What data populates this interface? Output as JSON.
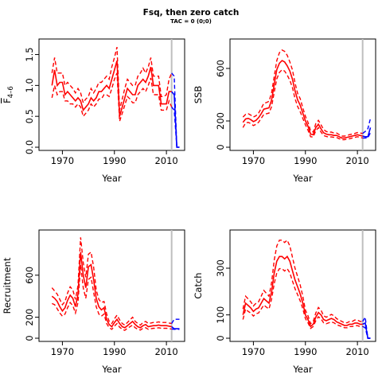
{
  "title": "Fsq, then zero catch",
  "subtitle": "TAC = 0 (0;0)",
  "colors": {
    "historical": "#ff0000",
    "projection": "#0000ff",
    "reference_line": "#bebebe"
  },
  "chart_data": [
    {
      "type": "line",
      "id": "f",
      "ylabel": "F̄ 4–6",
      "ylabel_main": "F",
      "ylabel_sub": "4–6",
      "xlabel": "Year",
      "xlim": [
        1961,
        2017
      ],
      "ylim": [
        0,
        1.7
      ],
      "xticks": [
        1970,
        1990,
        2010
      ],
      "yticks": [
        0,
        0.5,
        1,
        1.5
      ],
      "ytick_labels": [
        "0.0",
        "0.5",
        "1.0",
        "1.5"
      ],
      "ref_year": 2012,
      "series": [
        {
          "role": "historical",
          "x": [
            1966,
            1967,
            1968,
            1969,
            1970,
            1971,
            1972,
            1973,
            1974,
            1975,
            1976,
            1977,
            1978,
            1979,
            1980,
            1981,
            1982,
            1983,
            1984,
            1985,
            1986,
            1987,
            1988,
            1989,
            1990,
            1991,
            1992,
            1993,
            1994,
            1995,
            1996,
            1997,
            1998,
            1999,
            2000,
            2001,
            2002,
            2003,
            2004,
            2005,
            2006,
            2007,
            2008,
            2009,
            2010,
            2011,
            2012
          ],
          "mid": [
            1.0,
            1.25,
            1.0,
            1.05,
            1.05,
            0.85,
            0.9,
            0.85,
            0.8,
            0.75,
            0.8,
            0.75,
            0.6,
            0.65,
            0.7,
            0.8,
            0.75,
            0.8,
            0.9,
            0.9,
            0.95,
            1.0,
            0.95,
            1.1,
            1.25,
            1.4,
            0.5,
            0.65,
            0.8,
            0.95,
            0.9,
            0.85,
            0.85,
            1.0,
            1.05,
            1.1,
            1.05,
            1.15,
            1.3,
            1.0,
            1.0,
            1.0,
            0.7,
            0.7,
            0.7,
            0.9,
            0.9
          ],
          "lower": [
            0.8,
            1.0,
            0.85,
            0.9,
            0.9,
            0.75,
            0.75,
            0.7,
            0.7,
            0.65,
            0.7,
            0.65,
            0.5,
            0.55,
            0.6,
            0.7,
            0.65,
            0.7,
            0.78,
            0.78,
            0.85,
            0.85,
            0.82,
            0.95,
            1.1,
            1.2,
            0.42,
            0.55,
            0.68,
            0.82,
            0.78,
            0.72,
            0.72,
            0.85,
            0.9,
            0.95,
            0.9,
            1.0,
            1.12,
            0.85,
            0.85,
            0.85,
            0.6,
            0.6,
            0.6,
            0.75,
            0.65
          ],
          "upper": [
            1.2,
            1.45,
            1.2,
            1.2,
            1.2,
            1.0,
            1.05,
            1.0,
            0.95,
            0.88,
            0.95,
            0.88,
            0.72,
            0.78,
            0.82,
            0.95,
            0.88,
            0.95,
            1.05,
            1.05,
            1.1,
            1.15,
            1.1,
            1.3,
            1.45,
            1.62,
            0.6,
            0.78,
            0.95,
            1.1,
            1.05,
            1.0,
            1.0,
            1.15,
            1.2,
            1.28,
            1.2,
            1.3,
            1.45,
            1.15,
            1.15,
            1.15,
            0.82,
            0.82,
            0.85,
            1.1,
            1.2
          ]
        },
        {
          "role": "projection",
          "x": [
            2012,
            2013,
            2014,
            2015
          ],
          "mid": [
            0.9,
            0.85,
            0.0,
            0.0
          ],
          "lower": [
            0.65,
            0.6,
            0.0,
            0.0
          ],
          "upper": [
            1.2,
            1.15,
            0.0,
            0.0
          ]
        }
      ]
    },
    {
      "type": "line",
      "id": "ssb",
      "ylabel": "SSB",
      "xlabel": "Year",
      "xlim": [
        1961,
        2017
      ],
      "ylim": [
        0,
        800
      ],
      "xticks": [
        1970,
        1990,
        2010
      ],
      "yticks": [
        0,
        200,
        600
      ],
      "ytick_labels": [
        "0",
        "200",
        "600"
      ],
      "ref_year": 2012,
      "series": [
        {
          "role": "historical",
          "x": [
            1966,
            1967,
            1968,
            1969,
            1970,
            1971,
            1972,
            1973,
            1974,
            1975,
            1976,
            1977,
            1978,
            1979,
            1980,
            1981,
            1982,
            1983,
            1984,
            1985,
            1986,
            1987,
            1988,
            1989,
            1990,
            1991,
            1992,
            1993,
            1994,
            1995,
            1996,
            1997,
            1998,
            1999,
            2000,
            2001,
            2002,
            2003,
            2004,
            2005,
            2006,
            2007,
            2008,
            2009,
            2010,
            2011,
            2012
          ],
          "mid": [
            190,
            215,
            220,
            210,
            195,
            205,
            225,
            255,
            290,
            295,
            300,
            360,
            480,
            590,
            640,
            660,
            650,
            620,
            580,
            520,
            430,
            360,
            320,
            260,
            200,
            160,
            100,
            95,
            150,
            175,
            140,
            110,
            100,
            95,
            95,
            90,
            90,
            80,
            70,
            70,
            75,
            80,
            85,
            90,
            95,
            90,
            85
          ],
          "lower": [
            150,
            185,
            190,
            180,
            165,
            175,
            190,
            220,
            250,
            255,
            260,
            310,
            420,
            520,
            570,
            590,
            580,
            550,
            510,
            455,
            370,
            310,
            270,
            220,
            170,
            130,
            80,
            78,
            125,
            150,
            115,
            90,
            82,
            78,
            78,
            75,
            74,
            65,
            57,
            57,
            62,
            65,
            70,
            75,
            80,
            75,
            70
          ],
          "upper": [
            230,
            250,
            255,
            245,
            230,
            240,
            260,
            295,
            335,
            340,
            350,
            415,
            540,
            660,
            720,
            740,
            730,
            700,
            650,
            590,
            490,
            410,
            370,
            300,
            235,
            190,
            125,
            115,
            180,
            205,
            170,
            135,
            120,
            115,
            115,
            108,
            108,
            96,
            85,
            85,
            90,
            96,
            100,
            105,
            112,
            108,
            105
          ]
        },
        {
          "role": "projection",
          "x": [
            2012,
            2013,
            2014,
            2015
          ],
          "mid": [
            85,
            80,
            80,
            150
          ],
          "lower": [
            70,
            70,
            72,
            110
          ],
          "upper": [
            105,
            120,
            140,
            220
          ]
        }
      ]
    },
    {
      "type": "line",
      "id": "recruitment",
      "ylabel": "Recruitment",
      "xlabel": "Year",
      "xlim": [
        1961,
        2017
      ],
      "ylim": [
        0,
        1000
      ],
      "xticks": [
        1970,
        1990,
        2010
      ],
      "yticks": [
        0,
        200,
        600
      ],
      "ytick_labels": [
        "0",
        "200",
        "600"
      ],
      "ref_year": 2012,
      "series": [
        {
          "role": "historical",
          "x": [
            1966,
            1967,
            1968,
            1969,
            1970,
            1971,
            1972,
            1973,
            1974,
            1975,
            1976,
            1977,
            1978,
            1979,
            1980,
            1981,
            1982,
            1983,
            1984,
            1985,
            1986,
            1987,
            1988,
            1989,
            1990,
            1991,
            1992,
            1993,
            1994,
            1995,
            1996,
            1997,
            1998,
            1999,
            2000,
            2001,
            2002,
            2003,
            2004,
            2005,
            2006,
            2007,
            2008,
            2009,
            2010,
            2011,
            2012
          ],
          "mid": [
            400,
            380,
            350,
            300,
            260,
            290,
            360,
            410,
            380,
            300,
            420,
            820,
            600,
            480,
            680,
            700,
            560,
            380,
            300,
            270,
            290,
            180,
            130,
            110,
            150,
            180,
            140,
            110,
            100,
            120,
            140,
            160,
            130,
            110,
            100,
            120,
            130,
            110,
            115,
            120,
            120,
            125,
            120,
            120,
            120,
            115,
            110
          ],
          "lower": [
            330,
            320,
            280,
            240,
            210,
            230,
            290,
            340,
            310,
            240,
            340,
            700,
            480,
            380,
            560,
            580,
            440,
            300,
            230,
            210,
            230,
            140,
            100,
            85,
            115,
            140,
            105,
            85,
            75,
            95,
            110,
            125,
            100,
            85,
            78,
            95,
            100,
            85,
            90,
            95,
            95,
            100,
            95,
            95,
            95,
            90,
            88
          ],
          "upper": [
            480,
            450,
            420,
            370,
            320,
            350,
            430,
            490,
            460,
            370,
            500,
            960,
            720,
            580,
            800,
            820,
            680,
            460,
            370,
            340,
            350,
            230,
            160,
            140,
            185,
            220,
            175,
            140,
            125,
            150,
            175,
            200,
            160,
            140,
            125,
            150,
            160,
            140,
            145,
            150,
            150,
            155,
            150,
            150,
            150,
            145,
            140
          ]
        },
        {
          "role": "projection",
          "x": [
            2012,
            2013,
            2014,
            2015
          ],
          "mid": [
            110,
            90,
            90,
            90
          ],
          "lower": [
            88,
            85,
            85,
            85
          ],
          "upper": [
            140,
            180,
            180,
            180
          ]
        }
      ]
    },
    {
      "type": "line",
      "id": "catch",
      "ylabel": "Catch",
      "xlabel": "Year",
      "xlim": [
        1961,
        2017
      ],
      "ylim": [
        0,
        450
      ],
      "xticks": [
        1970,
        1990,
        2010
      ],
      "yticks": [
        0,
        100,
        300
      ],
      "ytick_labels": [
        "0",
        "100",
        "300"
      ],
      "ref_year": 2012,
      "series": [
        {
          "role": "historical",
          "x": [
            1966,
            1967,
            1968,
            1969,
            1970,
            1971,
            1972,
            1973,
            1974,
            1975,
            1976,
            1977,
            1978,
            1979,
            1980,
            1981,
            1982,
            1983,
            1984,
            1985,
            1986,
            1987,
            1988,
            1989,
            1990,
            1991,
            1992,
            1993,
            1994,
            1995,
            1996,
            1997,
            1998,
            1999,
            2000,
            2001,
            2002,
            2003,
            2004,
            2005,
            2006,
            2007,
            2008,
            2009,
            2010,
            2011,
            2012
          ],
          "mid": [
            100,
            150,
            140,
            130,
            115,
            125,
            130,
            150,
            170,
            160,
            150,
            200,
            280,
            330,
            350,
            350,
            340,
            350,
            330,
            290,
            250,
            220,
            190,
            150,
            100,
            80,
            50,
            60,
            90,
            110,
            100,
            80,
            75,
            80,
            85,
            80,
            70,
            65,
            60,
            55,
            55,
            60,
            60,
            65,
            65,
            60,
            60
          ],
          "lower": [
            80,
            125,
            115,
            108,
            95,
            105,
            108,
            125,
            142,
            133,
            125,
            168,
            235,
            280,
            298,
            298,
            288,
            298,
            280,
            246,
            212,
            186,
            160,
            126,
            84,
            66,
            42,
            50,
            75,
            92,
            83,
            66,
            62,
            66,
            70,
            66,
            58,
            54,
            50,
            45,
            45,
            50,
            50,
            54,
            54,
            50,
            50
          ],
          "upper": [
            125,
            180,
            168,
            156,
            138,
            150,
            156,
            180,
            205,
            192,
            180,
            240,
            335,
            395,
            420,
            420,
            410,
            420,
            395,
            348,
            300,
            264,
            228,
            180,
            120,
            96,
            62,
            72,
            108,
            132,
            120,
            96,
            90,
            96,
            102,
            96,
            84,
            78,
            72,
            66,
            66,
            72,
            72,
            78,
            78,
            72,
            72
          ]
        },
        {
          "role": "projection",
          "x": [
            2012,
            2013,
            2014,
            2015
          ],
          "mid": [
            60,
            65,
            0,
            0
          ],
          "lower": [
            50,
            45,
            0,
            0
          ],
          "upper": [
            72,
            90,
            0,
            0
          ]
        }
      ]
    }
  ]
}
